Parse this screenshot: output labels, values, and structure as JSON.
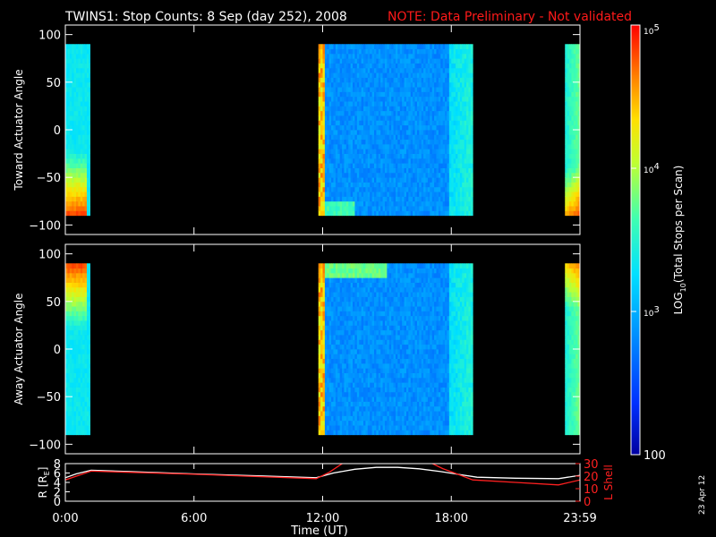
{
  "title": {
    "main": "TWINS1: Stop Counts:  8 Sep (day 252), 2008",
    "note": "NOTE: Data Preliminary - Not validated",
    "note_color": "#ff1a1a"
  },
  "footer_stamp": "23 Apr 12",
  "chart_data": [
    {
      "type": "heatmap",
      "name": "toward",
      "ylabel": "Toward Actuator Angle",
      "ylim": [
        -110,
        110
      ],
      "yticks": [
        100,
        50,
        0,
        -50,
        -100
      ],
      "xlim_hours": [
        0,
        24
      ],
      "data_ylim": [
        -90,
        90
      ],
      "segments_hours": [
        [
          0.0,
          1.15
        ],
        [
          11.8,
          19.0
        ],
        [
          23.3,
          24.0
        ]
      ]
    },
    {
      "type": "heatmap",
      "name": "away",
      "ylabel": "Away Actuator Angle",
      "ylim": [
        -110,
        110
      ],
      "yticks": [
        100,
        50,
        0,
        -50,
        -100
      ],
      "xlim_hours": [
        0,
        24
      ],
      "data_ylim": [
        -90,
        90
      ],
      "segments_hours": [
        [
          0.0,
          1.15
        ],
        [
          11.8,
          19.0
        ],
        [
          23.3,
          24.0
        ]
      ]
    },
    {
      "type": "line",
      "name": "orbit",
      "ylabel_left": "R [R",
      "ylabel_left_sub": "E",
      "ylabel_left_close": "]",
      "ylabel_right": "L Shell",
      "ylim_left": [
        0,
        8
      ],
      "yticks_left": [
        0,
        2,
        4,
        6,
        8
      ],
      "ylim_right": [
        0,
        30
      ],
      "yticks_right": [
        0,
        10,
        20,
        30
      ],
      "xlabel": "Time (UT)",
      "xticks": [
        "0:00",
        "6:00",
        "12:00",
        "18:00",
        "23:59"
      ],
      "xticks_hours": [
        0,
        6,
        12,
        18,
        24
      ],
      "series": [
        {
          "color": "#ffffff",
          "x_hours": [
            0,
            0.5,
            1.2,
            3,
            6,
            9,
            11.7,
            12.5,
            13.5,
            14.5,
            15.5,
            16.5,
            17.5,
            18.5,
            19.2,
            21,
            23,
            24
          ],
          "values": [
            5.0,
            5.8,
            6.6,
            6.3,
            5.8,
            5.4,
            5.0,
            6.0,
            6.8,
            7.2,
            7.2,
            6.9,
            6.3,
            5.6,
            5.1,
            4.9,
            4.8,
            5.5
          ]
        },
        {
          "color": "#ff2020",
          "axis": "right",
          "x_hours": [
            0,
            1.2,
            6,
            11.7,
            12.3,
            13.0,
            17.0,
            17.6,
            19.0,
            21,
            23,
            24
          ],
          "values": [
            17,
            24,
            21.5,
            18,
            23,
            31,
            31,
            26,
            17,
            15,
            13,
            17
          ]
        }
      ]
    }
  ],
  "colorbar": {
    "label_prefix": "LOG",
    "label_sub": "10",
    "label_suffix": "(Total Stops per Scan)",
    "ticks": [
      {
        "value": 100000,
        "label": "10",
        "exp": "5"
      },
      {
        "value": 10000,
        "label": "10",
        "exp": "4"
      },
      {
        "value": 1000,
        "label": "10",
        "exp": "3"
      },
      {
        "value": 100,
        "label": "100",
        "exp": ""
      }
    ],
    "log_range": [
      2,
      5
    ]
  }
}
